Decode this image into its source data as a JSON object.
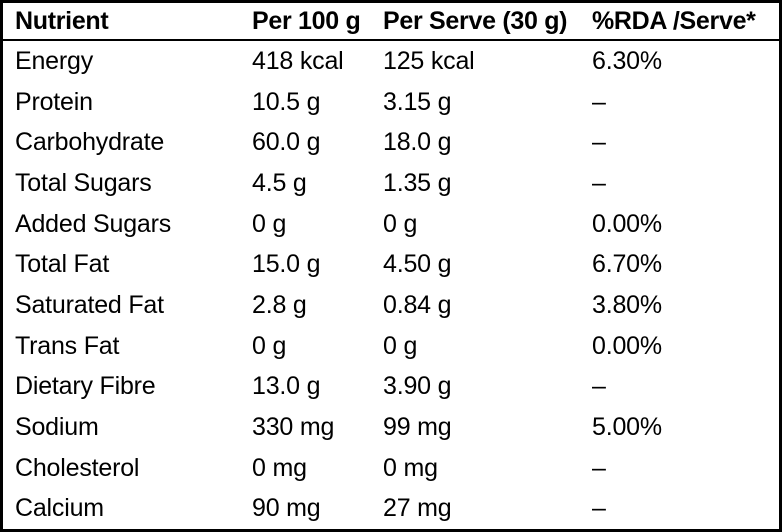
{
  "table": {
    "columns": [
      "Nutrient",
      "Per 100 g",
      "Per Serve (30 g)",
      "%RDA /Serve*"
    ],
    "rows": [
      {
        "nutrient": "Energy",
        "per_100g": "418 kcal",
        "per_serve": "125 kcal",
        "rda_per_serve": "6.30%"
      },
      {
        "nutrient": "Protein",
        "per_100g": "10.5 g",
        "per_serve": "3.15 g",
        "rda_per_serve": "–"
      },
      {
        "nutrient": "Carbohydrate",
        "per_100g": "60.0 g",
        "per_serve": "18.0 g",
        "rda_per_serve": "–"
      },
      {
        "nutrient": "Total Sugars",
        "per_100g": "4.5 g",
        "per_serve": "1.35 g",
        "rda_per_serve": "–"
      },
      {
        "nutrient": "Added Sugars",
        "per_100g": "0 g",
        "per_serve": "0 g",
        "rda_per_serve": "0.00%"
      },
      {
        "nutrient": "Total Fat",
        "per_100g": "15.0 g",
        "per_serve": "4.50 g",
        "rda_per_serve": "6.70%"
      },
      {
        "nutrient": "Saturated Fat",
        "per_100g": "2.8 g",
        "per_serve": "0.84 g",
        "rda_per_serve": "3.80%"
      },
      {
        "nutrient": "Trans Fat",
        "per_100g": "0 g",
        "per_serve": "0 g",
        "rda_per_serve": "0.00%"
      },
      {
        "nutrient": "Dietary Fibre",
        "per_100g": "13.0 g",
        "per_serve": "3.90 g",
        "rda_per_serve": "–"
      },
      {
        "nutrient": "Sodium",
        "per_100g": "330 mg",
        "per_serve": "99 mg",
        "rda_per_serve": "5.00%"
      },
      {
        "nutrient": "Cholesterol",
        "per_100g": "0 mg",
        "per_serve": "0 mg",
        "rda_per_serve": "–"
      },
      {
        "nutrient": "Calcium",
        "per_100g": "90 mg",
        "per_serve": "27 mg",
        "rda_per_serve": "–"
      }
    ],
    "colors": {
      "text": "#000000",
      "background": "#ffffff",
      "border": "#000000"
    }
  }
}
